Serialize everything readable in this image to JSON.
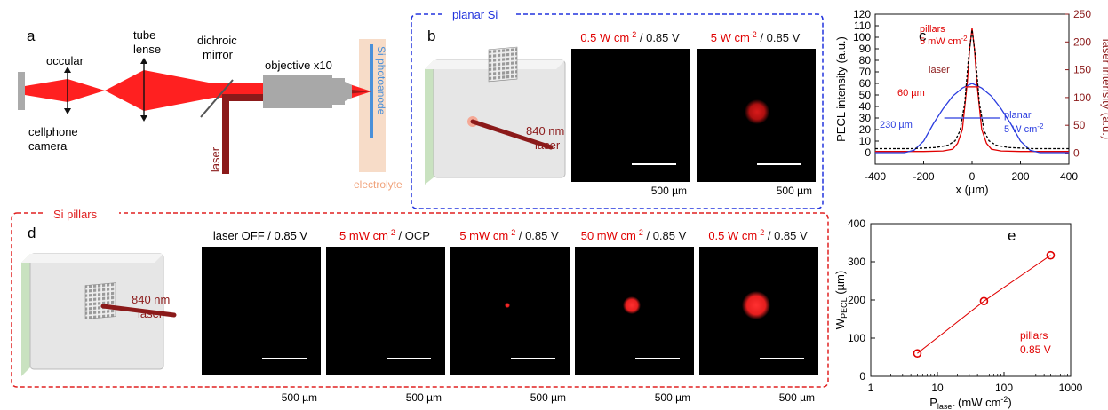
{
  "panels": {
    "a": {
      "letter": "a",
      "occular": "occular",
      "tube": [
        "tube",
        "lense"
      ],
      "dichroic": [
        "dichroic",
        "mirror"
      ],
      "objective": "objective x10",
      "photoanode": "Si photoanode",
      "camera": [
        "cellphone",
        "camera"
      ],
      "laser": "laser",
      "electrolyte": "electrolyte"
    },
    "b": {
      "letter": "b",
      "frame_title": "planar Si",
      "laser_label": [
        "840 nm",
        "laser"
      ],
      "images": [
        {
          "cond_red": "0.5 W cm",
          "sup": "-2",
          "cond_black": " / 0.85 V",
          "scale": "500 µm"
        },
        {
          "cond_red": "5 W cm",
          "sup": "-2",
          "cond_black": " / 0.85 V",
          "scale": "500 µm"
        }
      ]
    },
    "d": {
      "letter": "d",
      "frame_title": "Si pillars",
      "laser_label": [
        "840 nm",
        "laser"
      ],
      "images": [
        {
          "cond_red": "",
          "cond_black_pre": "laser OFF / 0.85 V",
          "sup": "",
          "cond_black": "",
          "scale": "500 µm"
        },
        {
          "cond_red": "5 mW cm",
          "sup": "-2",
          "cond_black": " / OCP",
          "scale": "500 µm"
        },
        {
          "cond_red": "5 mW cm",
          "sup": "-2",
          "cond_black": " / 0.85 V",
          "scale": "500 µm"
        },
        {
          "cond_red": "50 mW cm",
          "sup": "-2",
          "cond_black": " / 0.85 V",
          "scale": "500 µm"
        },
        {
          "cond_red": "0.5 W cm",
          "sup": "-2",
          "cond_black": " / 0.85 V",
          "scale": "500 µm"
        }
      ]
    }
  },
  "chart_data": [
    {
      "panel": "c",
      "type": "line",
      "xlabel": "x (µm)",
      "ylabel_left": "PECL intensity (a.u.)",
      "ylabel_right": "laser intensity (a.u.)",
      "xlim": [
        -400,
        400
      ],
      "ylim_left": [
        -10,
        120
      ],
      "ylim_right": [
        -20,
        250
      ],
      "xticks": [
        -400,
        -200,
        0,
        200,
        400
      ],
      "yticks_left": [
        0,
        10,
        20,
        30,
        40,
        50,
        60,
        70,
        80,
        90,
        100,
        110,
        120
      ],
      "yticks_right": [
        0,
        50,
        100,
        150,
        200,
        250
      ],
      "series": [
        {
          "name": "pillars 5 mW cm-2",
          "axis": "left",
          "color": "#e00000",
          "style": "solid",
          "x": [
            -400,
            -300,
            -200,
            -120,
            -80,
            -60,
            -40,
            -20,
            -10,
            0,
            10,
            20,
            40,
            60,
            80,
            120,
            200,
            300,
            400
          ],
          "y": [
            1,
            1,
            1,
            1.5,
            3,
            8,
            20,
            60,
            90,
            108,
            90,
            60,
            20,
            8,
            3,
            1.5,
            1,
            1,
            1
          ]
        },
        {
          "name": "planar 5 W cm-2",
          "axis": "left",
          "color": "#2b3ddf",
          "style": "solid",
          "x": [
            -400,
            -280,
            -240,
            -200,
            -160,
            -120,
            -80,
            -40,
            0,
            40,
            80,
            120,
            160,
            200,
            240,
            280,
            400
          ],
          "y": [
            0,
            0,
            2,
            10,
            25,
            38,
            49,
            56,
            60,
            56,
            49,
            38,
            25,
            10,
            2,
            0,
            0
          ]
        },
        {
          "name": "laser",
          "axis": "right",
          "color": "#000000",
          "style": "dashed",
          "x": [
            -400,
            -250,
            -150,
            -100,
            -70,
            -50,
            -30,
            -15,
            0,
            15,
            30,
            50,
            70,
            100,
            150,
            250,
            400
          ],
          "y": [
            8,
            8,
            10,
            14,
            22,
            40,
            90,
            170,
            222,
            170,
            90,
            40,
            22,
            14,
            10,
            8,
            8
          ]
        }
      ],
      "annotations": [
        {
          "text": "pillars",
          "color": "#e00000"
        },
        {
          "text": "5 mW cm",
          "sup": "-2",
          "color": "#e00000"
        },
        {
          "text": "laser",
          "color": "#8b1a1a"
        },
        {
          "text": "60 µm",
          "color": "#e00000"
        },
        {
          "text": "230 µm",
          "color": "#2b3ddf"
        },
        {
          "text": "planar",
          "color": "#2b3ddf"
        },
        {
          "text": "5 W cm",
          "sup": "-2",
          "color": "#2b3ddf"
        }
      ],
      "widths": {
        "pillars_fwhm_um": 60,
        "planar_fwhm_um": 230
      }
    },
    {
      "panel": "e",
      "type": "scatter",
      "xlabel_main": "P",
      "xlabel_sub": "laser",
      "xlabel_tail": " (mW cm",
      "xlabel_sup": "-2",
      "xlabel_end": ")",
      "ylabel_main": "W",
      "ylabel_sub": "PECL",
      "ylabel_tail": " (µm)",
      "xscale": "log",
      "xlim": [
        1,
        1000
      ],
      "ylim": [
        0,
        400
      ],
      "xticks": [
        1,
        10,
        100,
        1000
      ],
      "yticks": [
        0,
        100,
        200,
        300,
        400
      ],
      "x": [
        5,
        50,
        500
      ],
      "y": [
        60,
        197,
        317
      ],
      "fit_line": true,
      "color": "#e00000",
      "legend": [
        "pillars",
        "0.85 V"
      ]
    }
  ],
  "colors": {
    "red": "#e00000",
    "laser_dark": "#8b1a1a",
    "blue_frame": "#2233dd",
    "red_frame": "#e02020",
    "electrolyte": "#f7dcc8",
    "photoanode": "#4a90d9"
  }
}
